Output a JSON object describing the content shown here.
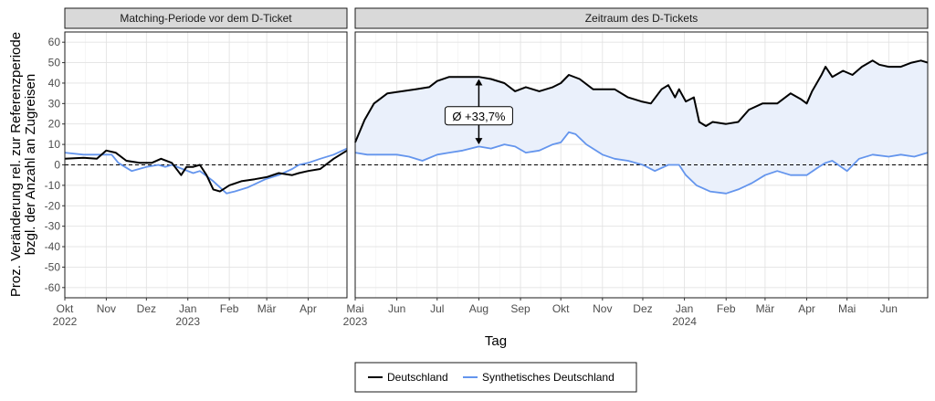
{
  "chart_data": {
    "type": "line",
    "xlabel": "Tag",
    "ylabel_lines": [
      "Proz. Veränderung rel. zur Referenzperiode",
      "bzgl. der Anzahl an Zugreisen"
    ],
    "ylim": [
      -65,
      65
    ],
    "yticks": [
      -60,
      -50,
      -40,
      -30,
      -20,
      -10,
      0,
      10,
      20,
      30,
      40,
      50,
      60
    ],
    "grid": true,
    "legend_position": "bottom",
    "colors": {
      "deutschland": "#000000",
      "synthetisch": "#6495ED",
      "ribbon": "#EAF0FB"
    },
    "panels": [
      {
        "strip": "Matching-Periode vor dem D-Ticket",
        "xlim": [
          "2022-10-01",
          "2023-04-30"
        ],
        "xticks": [
          {
            "date": "2022-10-01",
            "label": "Okt",
            "year": "2022"
          },
          {
            "date": "2022-11-01",
            "label": "Nov",
            "year": ""
          },
          {
            "date": "2022-12-01",
            "label": "Dez",
            "year": ""
          },
          {
            "date": "2023-01-01",
            "label": "Jan",
            "year": "2023"
          },
          {
            "date": "2023-02-01",
            "label": "Feb",
            "year": ""
          },
          {
            "date": "2023-03-01",
            "label": "Mär",
            "year": ""
          },
          {
            "date": "2023-04-01",
            "label": "Apr",
            "year": ""
          }
        ],
        "series": [
          {
            "key": "deutschland",
            "points": [
              [
                "2022-10-01",
                3
              ],
              [
                "2022-10-15",
                3.5
              ],
              [
                "2022-10-25",
                3
              ],
              [
                "2022-11-01",
                7
              ],
              [
                "2022-11-08",
                6
              ],
              [
                "2022-11-16",
                2
              ],
              [
                "2022-11-26",
                1
              ],
              [
                "2022-12-05",
                1
              ],
              [
                "2022-12-12",
                3
              ],
              [
                "2022-12-20",
                1
              ],
              [
                "2022-12-27",
                -5
              ],
              [
                "2022-12-31",
                -1
              ],
              [
                "2023-01-05",
                -1
              ],
              [
                "2023-01-10",
                0
              ],
              [
                "2023-01-15",
                -5
              ],
              [
                "2023-01-20",
                -12
              ],
              [
                "2023-01-25",
                -13
              ],
              [
                "2023-02-01",
                -10
              ],
              [
                "2023-02-10",
                -8
              ],
              [
                "2023-02-20",
                -7
              ],
              [
                "2023-03-01",
                -6
              ],
              [
                "2023-03-10",
                -4
              ],
              [
                "2023-03-20",
                -5
              ],
              [
                "2023-03-25",
                -4
              ],
              [
                "2023-04-01",
                -3
              ],
              [
                "2023-04-10",
                -2
              ],
              [
                "2023-04-20",
                3
              ],
              [
                "2023-04-25",
                5
              ],
              [
                "2023-04-30",
                7
              ]
            ]
          },
          {
            "key": "synthetisch",
            "points": [
              [
                "2022-10-01",
                6
              ],
              [
                "2022-10-15",
                5
              ],
              [
                "2022-10-25",
                5
              ],
              [
                "2022-11-05",
                5
              ],
              [
                "2022-11-10",
                1
              ],
              [
                "2022-11-20",
                -3
              ],
              [
                "2022-12-01",
                -1
              ],
              [
                "2022-12-10",
                0
              ],
              [
                "2022-12-15",
                -1
              ],
              [
                "2022-12-20",
                0
              ],
              [
                "2022-12-28",
                -2
              ],
              [
                "2023-01-05",
                -4
              ],
              [
                "2023-01-10",
                -3
              ],
              [
                "2023-01-20",
                -8
              ],
              [
                "2023-01-30",
                -14
              ],
              [
                "2023-02-05",
                -13
              ],
              [
                "2023-02-15",
                -11
              ],
              [
                "2023-02-28",
                -7
              ],
              [
                "2023-03-10",
                -5
              ],
              [
                "2023-03-20",
                -2
              ],
              [
                "2023-03-25",
                0
              ],
              [
                "2023-04-01",
                1
              ],
              [
                "2023-04-10",
                3
              ],
              [
                "2023-04-20",
                5
              ],
              [
                "2023-04-30",
                8
              ]
            ]
          }
        ]
      },
      {
        "strip": "Zeitraum des D-Tickets",
        "xlim": [
          "2023-05-01",
          "2024-06-30"
        ],
        "xticks": [
          {
            "date": "2023-05-01",
            "label": "Mai",
            "year": "2023"
          },
          {
            "date": "2023-06-01",
            "label": "Jun",
            "year": ""
          },
          {
            "date": "2023-07-01",
            "label": "Jul",
            "year": ""
          },
          {
            "date": "2023-08-01",
            "label": "Aug",
            "year": ""
          },
          {
            "date": "2023-09-01",
            "label": "Sep",
            "year": ""
          },
          {
            "date": "2023-10-01",
            "label": "Okt",
            "year": ""
          },
          {
            "date": "2023-11-01",
            "label": "Nov",
            "year": ""
          },
          {
            "date": "2023-12-01",
            "label": "Dez",
            "year": ""
          },
          {
            "date": "2024-01-01",
            "label": "Jan",
            "year": "2024"
          },
          {
            "date": "2024-02-01",
            "label": "Feb",
            "year": ""
          },
          {
            "date": "2024-03-01",
            "label": "Mär",
            "year": ""
          },
          {
            "date": "2024-04-01",
            "label": "Apr",
            "year": ""
          },
          {
            "date": "2024-05-01",
            "label": "Mai",
            "year": ""
          },
          {
            "date": "2024-06-01",
            "label": "Jun",
            "year": ""
          }
        ],
        "series": [
          {
            "key": "deutschland",
            "points": [
              [
                "2023-05-01",
                11
              ],
              [
                "2023-05-08",
                22
              ],
              [
                "2023-05-15",
                30
              ],
              [
                "2023-05-25",
                35
              ],
              [
                "2023-06-05",
                36
              ],
              [
                "2023-06-15",
                37
              ],
              [
                "2023-06-25",
                38
              ],
              [
                "2023-07-01",
                41
              ],
              [
                "2023-07-10",
                43
              ],
              [
                "2023-07-20",
                43
              ],
              [
                "2023-08-01",
                43
              ],
              [
                "2023-08-10",
                42
              ],
              [
                "2023-08-20",
                40
              ],
              [
                "2023-08-28",
                36
              ],
              [
                "2023-09-05",
                38
              ],
              [
                "2023-09-15",
                36
              ],
              [
                "2023-09-25",
                38
              ],
              [
                "2023-10-01",
                40
              ],
              [
                "2023-10-07",
                44
              ],
              [
                "2023-10-15",
                42
              ],
              [
                "2023-10-25",
                37
              ],
              [
                "2023-11-01",
                37
              ],
              [
                "2023-11-10",
                37
              ],
              [
                "2023-11-20",
                33
              ],
              [
                "2023-11-30",
                31
              ],
              [
                "2023-12-07",
                30
              ],
              [
                "2023-12-15",
                37
              ],
              [
                "2023-12-20",
                39
              ],
              [
                "2023-12-25",
                33
              ],
              [
                "2023-12-28",
                37
              ],
              [
                "2024-01-02",
                31
              ],
              [
                "2024-01-08",
                33
              ],
              [
                "2024-01-12",
                21
              ],
              [
                "2024-01-17",
                19
              ],
              [
                "2024-01-22",
                21
              ],
              [
                "2024-02-01",
                20
              ],
              [
                "2024-02-10",
                21
              ],
              [
                "2024-02-18",
                27
              ],
              [
                "2024-02-28",
                30
              ],
              [
                "2024-03-10",
                30
              ],
              [
                "2024-03-20",
                35
              ],
              [
                "2024-03-28",
                32
              ],
              [
                "2024-04-01",
                30
              ],
              [
                "2024-04-05",
                36
              ],
              [
                "2024-04-12",
                44
              ],
              [
                "2024-04-15",
                48
              ],
              [
                "2024-04-20",
                43
              ],
              [
                "2024-04-28",
                46
              ],
              [
                "2024-05-05",
                44
              ],
              [
                "2024-05-12",
                48
              ],
              [
                "2024-05-20",
                51
              ],
              [
                "2024-05-25",
                49
              ],
              [
                "2024-06-01",
                48
              ],
              [
                "2024-06-10",
                48
              ],
              [
                "2024-06-18",
                50
              ],
              [
                "2024-06-25",
                51
              ],
              [
                "2024-06-30",
                50
              ]
            ]
          },
          {
            "key": "synthetisch",
            "points": [
              [
                "2023-05-01",
                6
              ],
              [
                "2023-05-10",
                5
              ],
              [
                "2023-05-20",
                5
              ],
              [
                "2023-06-01",
                5
              ],
              [
                "2023-06-10",
                4
              ],
              [
                "2023-06-20",
                2
              ],
              [
                "2023-07-01",
                5
              ],
              [
                "2023-07-10",
                6
              ],
              [
                "2023-07-20",
                7
              ],
              [
                "2023-08-01",
                9
              ],
              [
                "2023-08-10",
                8
              ],
              [
                "2023-08-20",
                10
              ],
              [
                "2023-08-28",
                9
              ],
              [
                "2023-09-05",
                6
              ],
              [
                "2023-09-15",
                7
              ],
              [
                "2023-09-25",
                10
              ],
              [
                "2023-10-01",
                11
              ],
              [
                "2023-10-07",
                16
              ],
              [
                "2023-10-12",
                15
              ],
              [
                "2023-10-20",
                10
              ],
              [
                "2023-11-01",
                5
              ],
              [
                "2023-11-10",
                3
              ],
              [
                "2023-11-20",
                2
              ],
              [
                "2023-12-01",
                0
              ],
              [
                "2023-12-10",
                -3
              ],
              [
                "2023-12-20",
                0
              ],
              [
                "2023-12-28",
                0
              ],
              [
                "2024-01-02",
                -5
              ],
              [
                "2024-01-10",
                -10
              ],
              [
                "2024-01-20",
                -13
              ],
              [
                "2024-02-01",
                -14
              ],
              [
                "2024-02-10",
                -12
              ],
              [
                "2024-02-20",
                -9
              ],
              [
                "2024-03-01",
                -5
              ],
              [
                "2024-03-10",
                -3
              ],
              [
                "2024-03-20",
                -5
              ],
              [
                "2024-04-01",
                -5
              ],
              [
                "2024-04-10",
                -1
              ],
              [
                "2024-04-15",
                1
              ],
              [
                "2024-04-20",
                2
              ],
              [
                "2024-05-01",
                -3
              ],
              [
                "2024-05-10",
                3
              ],
              [
                "2024-05-20",
                5
              ],
              [
                "2024-06-01",
                4
              ],
              [
                "2024-06-10",
                5
              ],
              [
                "2024-06-20",
                4
              ],
              [
                "2024-06-30",
                6
              ]
            ]
          }
        ],
        "annotation": {
          "text": "Ø +33,7%",
          "date": "2023-08-01",
          "arrow_top": 42,
          "arrow_bottom": 10,
          "label_y": 24
        }
      }
    ],
    "legend": [
      {
        "key": "deutschland",
        "label": "Deutschland"
      },
      {
        "key": "synthetisch",
        "label": "Synthetisches Deutschland"
      }
    ]
  }
}
